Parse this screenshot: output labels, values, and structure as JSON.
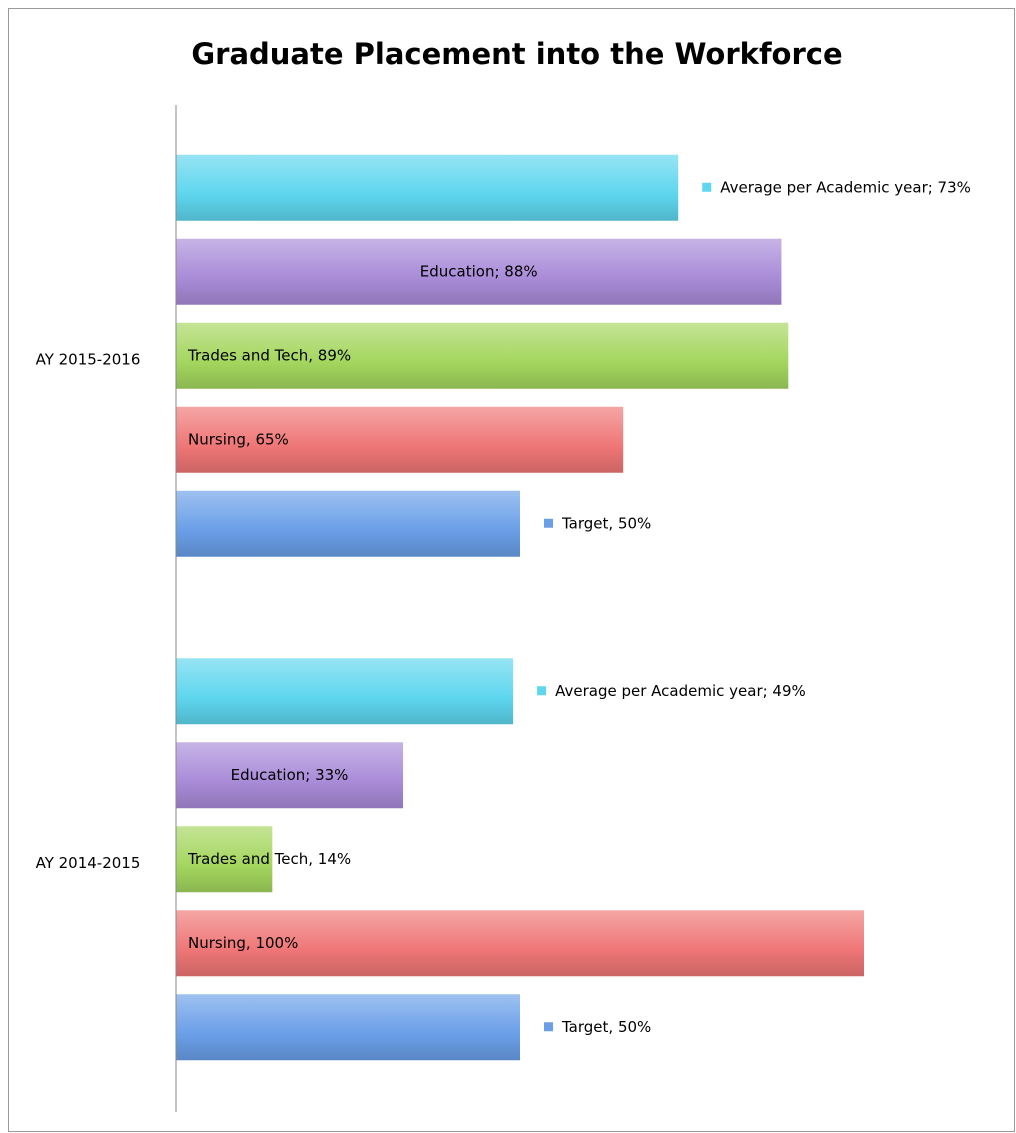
{
  "chart_data": {
    "type": "barh",
    "title": "Graduate Placement into the Workforce",
    "categories": [
      "AY 2015-2016",
      "AY 2014-2015"
    ],
    "xlim": [
      0,
      100
    ],
    "series": [
      {
        "name": "Average per Academic year",
        "color": "#5ed6ee",
        "values": [
          73,
          49
        ],
        "value_labels": [
          "Average per Academic year; 73%",
          "Average per Academic year; 49%"
        ]
      },
      {
        "name": "Education",
        "color": "#a98bd8",
        "values": [
          88,
          33
        ],
        "value_labels": [
          "Education; 88%",
          "Education; 33%"
        ]
      },
      {
        "name": "Trades and Tech",
        "color": "#a4d65e",
        "values": [
          89,
          14
        ],
        "value_labels": [
          "Trades and Tech, 89%",
          "Trades and Tech, 14%"
        ]
      },
      {
        "name": "Nursing",
        "color": "#ef7676",
        "values": [
          65,
          100
        ],
        "value_labels": [
          "Nursing, 65%",
          "Nursing, 100%"
        ]
      },
      {
        "name": "Target",
        "color": "#6a9fe8",
        "values": [
          50,
          50
        ],
        "value_labels": [
          "Target, 50%",
          "Target, 50%"
        ]
      }
    ]
  }
}
